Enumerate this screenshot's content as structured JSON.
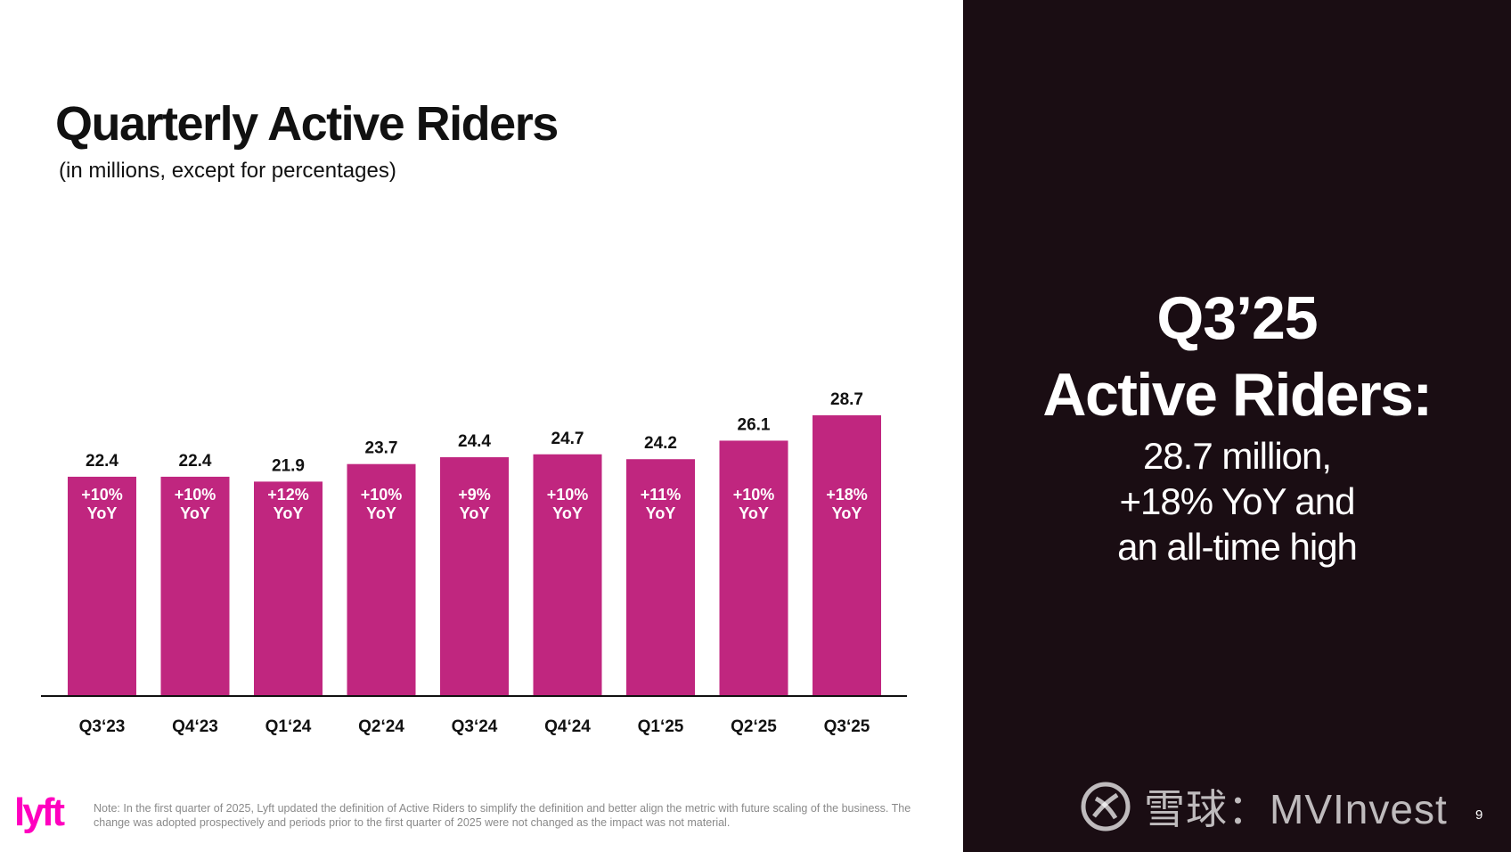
{
  "slide": {
    "title": "Quarterly Active Riders",
    "subtitle": "(in millions, except for percentages)",
    "headline_line1": "Q3’25",
    "headline_line2": "Active Riders:",
    "detail_line1": "28.7 million,",
    "detail_line2": "+18% YoY and",
    "detail_line3": "an all-time high",
    "note": "Note: In the first quarter of 2025, Lyft updated the definition of Active Riders to simplify the definition and better align the metric with future scaling of the business. The change was adopted prospectively and periods prior to the first quarter of 2025 were not changed as the impact was not material.",
    "page_number": "9",
    "logo_text": "lyft",
    "watermark": "雪球：MVInvest"
  },
  "colors": {
    "bar": "#c0267f",
    "dark_panel": "#1a0d13",
    "brand_pink": "#ff00bf"
  },
  "chart_data": {
    "type": "bar",
    "categories": [
      "Q3‘23",
      "Q4‘23",
      "Q1‘24",
      "Q2‘24",
      "Q3‘24",
      "Q4‘24",
      "Q1‘25",
      "Q2‘25",
      "Q3‘25"
    ],
    "values": [
      22.4,
      22.4,
      21.9,
      23.7,
      24.4,
      24.7,
      24.2,
      26.1,
      28.7
    ],
    "yoy_labels": [
      "+10%",
      "+10%",
      "+12%",
      "+10%",
      "+9%",
      "+10%",
      "+11%",
      "+10%",
      "+18%"
    ],
    "yoy_suffix": "YoY",
    "ylim": [
      0,
      28.7
    ],
    "grid": false
  }
}
